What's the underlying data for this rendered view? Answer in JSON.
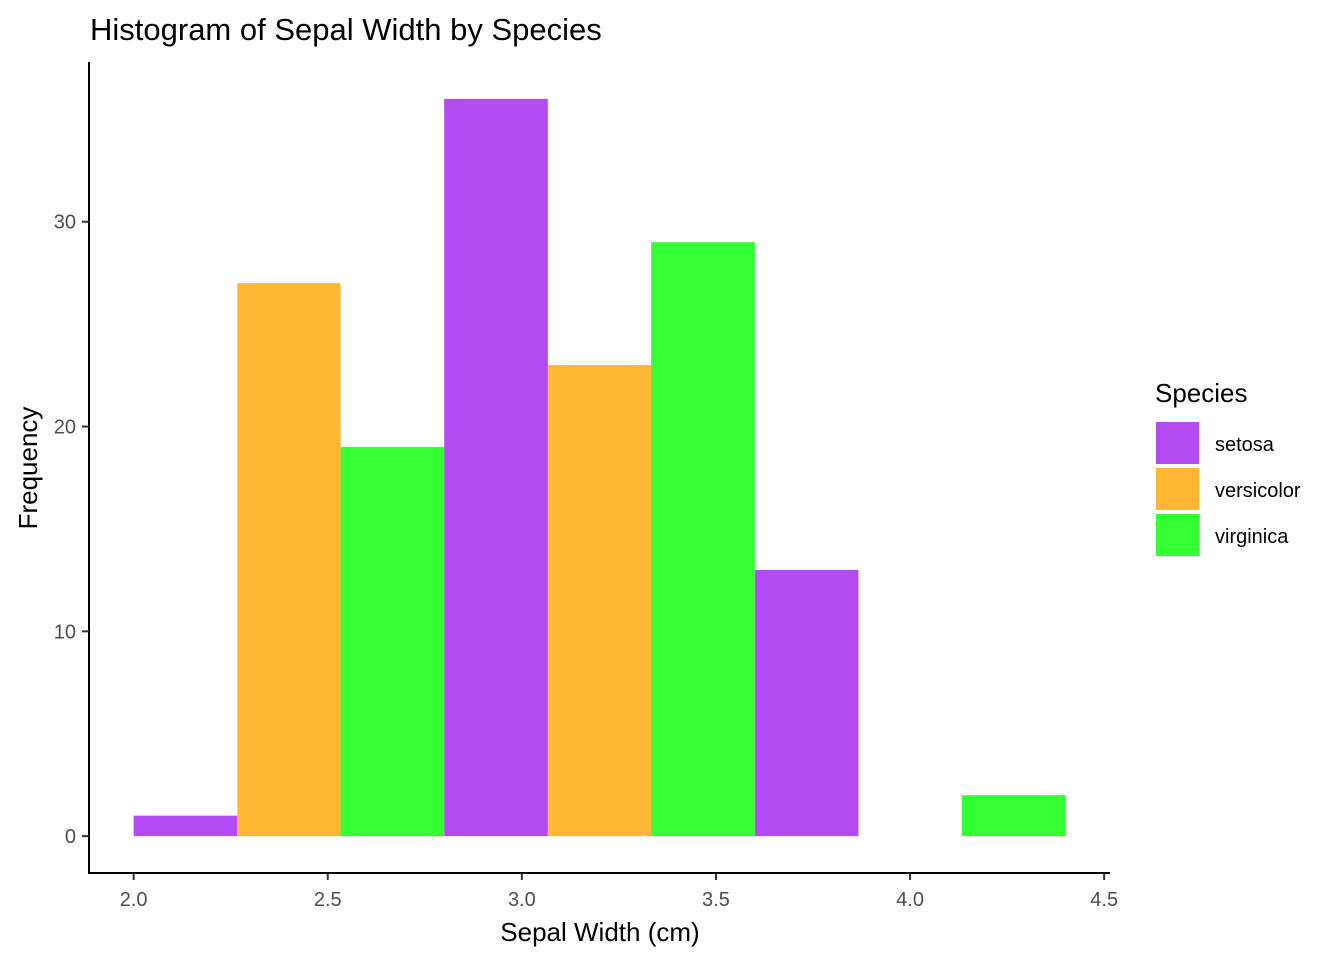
{
  "chart_data": {
    "type": "bar",
    "title": "Histogram of Sepal Width by Species",
    "xlabel": "Sepal Width (cm)",
    "ylabel": "Frequency",
    "xlim": [
      1.885,
      4.515
    ],
    "ylim": [
      -1.8,
      37.8
    ],
    "x_ticks": [
      2.0,
      2.5,
      3.0,
      3.5,
      4.0,
      4.5
    ],
    "x_tick_labels": [
      "2.0",
      "2.5",
      "3.0",
      "3.5",
      "4.0",
      "4.5"
    ],
    "y_ticks": [
      0,
      10,
      20,
      30
    ],
    "y_tick_labels": [
      "0",
      "10",
      "20",
      "30"
    ],
    "grid": false,
    "legend": {
      "title": "Species",
      "position": "right",
      "entries": [
        {
          "label": "setosa",
          "color": "#b34bf2"
        },
        {
          "label": "versicolor",
          "color": "#ffb733"
        },
        {
          "label": "virginica",
          "color": "#33ff33"
        }
      ]
    },
    "bars": [
      {
        "species": "setosa",
        "x_start": 2.0,
        "x_end": 2.267,
        "value": 1
      },
      {
        "species": "versicolor",
        "x_start": 2.267,
        "x_end": 2.533,
        "value": 27
      },
      {
        "species": "virginica",
        "x_start": 2.533,
        "x_end": 2.8,
        "value": 19
      },
      {
        "species": "setosa",
        "x_start": 2.8,
        "x_end": 3.067,
        "value": 36
      },
      {
        "species": "versicolor",
        "x_start": 3.067,
        "x_end": 3.333,
        "value": 23
      },
      {
        "species": "virginica",
        "x_start": 3.333,
        "x_end": 3.6,
        "value": 29
      },
      {
        "species": "setosa",
        "x_start": 3.6,
        "x_end": 3.867,
        "value": 13
      },
      {
        "species": "virginica",
        "x_start": 4.133,
        "x_end": 4.4,
        "value": 2
      }
    ]
  }
}
